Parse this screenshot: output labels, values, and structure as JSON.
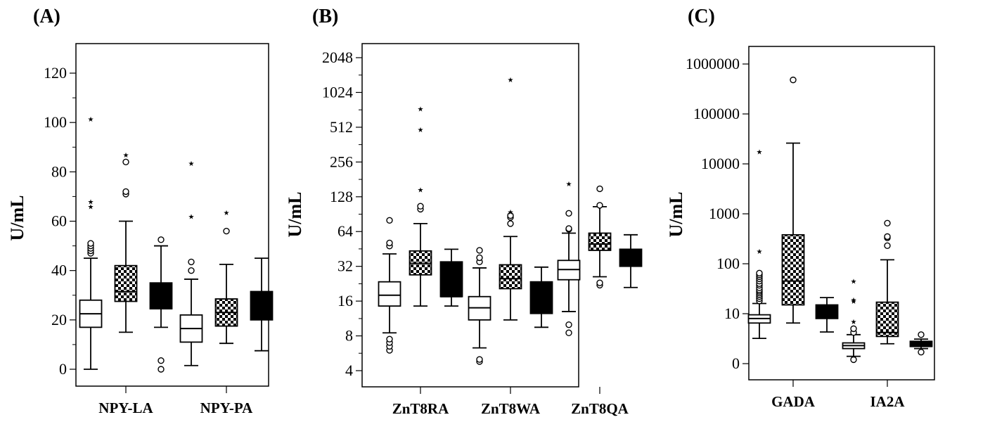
{
  "chart_data": [
    {
      "type": "box",
      "panel_label": "(A)",
      "ylabel": "U/mL",
      "y_scale": "linear",
      "ylim": [
        -6,
        126
      ],
      "yticks": [
        0,
        20,
        40,
        60,
        80,
        100,
        120
      ],
      "ytick_labels": [
        "0",
        "20",
        "40",
        "60",
        "80",
        "100",
        "120"
      ],
      "y_minor_ticks": [
        10,
        30,
        50,
        70,
        90,
        110
      ],
      "categories": [
        "NPY-LA",
        "NPY-PA"
      ],
      "box_fills": [
        "white",
        "checker",
        "black"
      ],
      "groups": [
        {
          "category": "NPY-LA",
          "boxes": [
            {
              "fill": "white",
              "whisker_low": 0,
              "q1": 17,
              "median": 22.5,
              "q3": 28,
              "whisker_high": 45,
              "outliers": [
                47,
                48,
                49,
                50,
                51
              ],
              "extremes": [
                66,
                68,
                101.5
              ]
            },
            {
              "fill": "checker",
              "whisker_low": 15,
              "q1": 27.5,
              "median": 31.5,
              "q3": 42,
              "whisker_high": 60,
              "outliers": [
                71,
                72,
                84
              ],
              "extremes": [
                87
              ]
            },
            {
              "fill": "black",
              "whisker_low": 17,
              "q1": 24.5,
              "median": 29,
              "q3": 35,
              "whisker_high": 50,
              "outliers": [
                0,
                3.5,
                52.5
              ],
              "extremes": []
            }
          ]
        },
        {
          "category": "NPY-PA",
          "boxes": [
            {
              "fill": "white",
              "whisker_low": 1.5,
              "q1": 11,
              "median": 16.5,
              "q3": 22,
              "whisker_high": 36.5,
              "outliers": [
                40,
                43.5
              ],
              "extremes": [
                62,
                83.5
              ]
            },
            {
              "fill": "checker",
              "whisker_low": 10.5,
              "q1": 17.5,
              "median": 23,
              "q3": 28.5,
              "whisker_high": 42.5,
              "outliers": [
                56
              ],
              "extremes": [
                63.5
              ]
            },
            {
              "fill": "black",
              "whisker_low": 7.5,
              "q1": 20,
              "median": 25.5,
              "q3": 31.5,
              "whisker_high": 45,
              "outliers": [],
              "extremes": []
            }
          ]
        }
      ]
    },
    {
      "type": "box",
      "panel_label": "(B)",
      "ylabel": "U/mL",
      "y_scale": "log2",
      "ylim": [
        3.2,
        2900
      ],
      "yticks": [
        4,
        8,
        16,
        32,
        64,
        128,
        256,
        512,
        1024,
        2048
      ],
      "ytick_labels": [
        "4",
        "8",
        "16",
        "32",
        "64",
        "128",
        "256",
        "512",
        "1024",
        "2048"
      ],
      "y_minor_ticks": [
        5.66,
        11.3,
        22.6,
        45.3,
        90.5,
        181,
        362,
        724,
        1448
      ],
      "categories": [
        "ZnT8RA",
        "ZnT8WA",
        "ZnT8QA"
      ],
      "box_fills": [
        "white",
        "checker",
        "black"
      ],
      "groups": [
        {
          "category": "ZnT8RA",
          "boxes": [
            {
              "fill": "white",
              "whisker_low": 8.5,
              "q1": 14.5,
              "median": 18,
              "q3": 23.5,
              "whisker_high": 41,
              "outliers": [
                6,
                6.5,
                7,
                7.5,
                48,
                51,
                80
              ],
              "extremes": []
            },
            {
              "fill": "checker",
              "whisker_low": 14.5,
              "q1": 27,
              "median": 34,
              "q3": 43.5,
              "whisker_high": 75,
              "outliers": [
                100,
                106
              ],
              "extremes": [
                148,
                490,
                740
              ]
            },
            {
              "fill": "black",
              "whisker_low": 14.5,
              "q1": 17.5,
              "median": 17.5,
              "q3": 35,
              "whisker_high": 45,
              "outliers": [],
              "extremes": []
            }
          ]
        },
        {
          "category": "ZnT8WA",
          "boxes": [
            {
              "fill": "white",
              "whisker_low": 6.3,
              "q1": 11,
              "median": 14,
              "q3": 17.5,
              "whisker_high": 31,
              "outliers": [
                4.8,
                5,
                35,
                38,
                44
              ],
              "extremes": []
            },
            {
              "fill": "checker",
              "whisker_low": 11,
              "q1": 20.5,
              "median": 25,
              "q3": 33,
              "whisker_high": 58,
              "outliers": [
                75,
                85,
                88
              ],
              "extremes": [
                95,
                1330
              ]
            },
            {
              "fill": "black",
              "whisker_low": 9.5,
              "q1": 12.5,
              "median": 15,
              "q3": 23.5,
              "whisker_high": 31.5,
              "outliers": [],
              "extremes": []
            }
          ]
        },
        {
          "category": "ZnT8QA",
          "boxes": [
            {
              "fill": "white",
              "whisker_low": 13,
              "q1": 24.5,
              "median": 30,
              "q3": 36,
              "whisker_high": 62,
              "outliers": [
                8.5,
                10,
                67,
                68,
                92
              ],
              "extremes": [
                167
              ]
            },
            {
              "fill": "checker",
              "whisker_low": 26,
              "q1": 44,
              "median": 50,
              "q3": 62,
              "whisker_high": 105,
              "outliers": [
                22,
                23,
                108,
                150
              ],
              "extremes": []
            },
            {
              "fill": "black",
              "whisker_low": 21,
              "q1": 32,
              "median": 37,
              "q3": 45,
              "whisker_high": 60,
              "outliers": [],
              "extremes": []
            }
          ]
        }
      ]
    },
    {
      "type": "box",
      "panel_label": "(C)",
      "ylabel": "U/mL",
      "y_scale": "log10 (axis labelled from 0)",
      "ylim": [
        -0.35,
        6.35
      ],
      "yticks": [
        0,
        1,
        2,
        3,
        4,
        5,
        6
      ],
      "ytick_labels": [
        "0",
        "10",
        "100",
        "1000",
        "10000",
        "100000",
        "1000000"
      ],
      "categories": [
        "GADA",
        "IA2A"
      ],
      "box_fills": [
        "white",
        "checker",
        "black"
      ],
      "groups": [
        {
          "category": "GADA",
          "boxes": [
            {
              "fill": "white",
              "whisker_low": 3.2,
              "q1": 6.5,
              "median": 8,
              "q3": 9.5,
              "whisker_high": 16,
              "outliers": [
                18,
                20,
                22,
                24,
                26,
                28,
                30,
                33,
                37,
                40,
                45,
                50,
                55,
                60,
                65
              ],
              "extremes": [
                180,
                17500
              ]
            },
            {
              "fill": "checker",
              "whisker_low": 6.5,
              "q1": 15,
              "median": 45,
              "q3": 380,
              "whisker_high": 26000,
              "outliers": [
                480000
              ],
              "extremes": []
            },
            {
              "fill": "black",
              "whisker_low": 4.3,
              "q1": 8,
              "median": 11,
              "q3": 15,
              "whisker_high": 21,
              "outliers": [],
              "extremes": []
            }
          ]
        },
        {
          "category": "IA2A",
          "boxes": [
            {
              "fill": "white",
              "whisker_low": 1.4,
              "q1": 2,
              "median": 2.3,
              "q3": 2.6,
              "whisker_high": 3.8,
              "outliers": [
                1.2,
                4.2,
                5
              ],
              "extremes": [
                7,
                18,
                19,
                45
              ]
            },
            {
              "fill": "checker",
              "whisker_low": 2.5,
              "q1": 3.5,
              "median": 4.2,
              "q3": 17,
              "whisker_high": 120,
              "outliers": [
                230,
                330,
                350,
                650
              ],
              "extremes": []
            },
            {
              "fill": "black",
              "whisker_low": 2,
              "q1": 2.2,
              "median": 2.5,
              "q3": 2.8,
              "whisker_high": 3.1,
              "outliers": [
                1.7,
                3.8
              ],
              "extremes": []
            }
          ]
        }
      ]
    }
  ]
}
